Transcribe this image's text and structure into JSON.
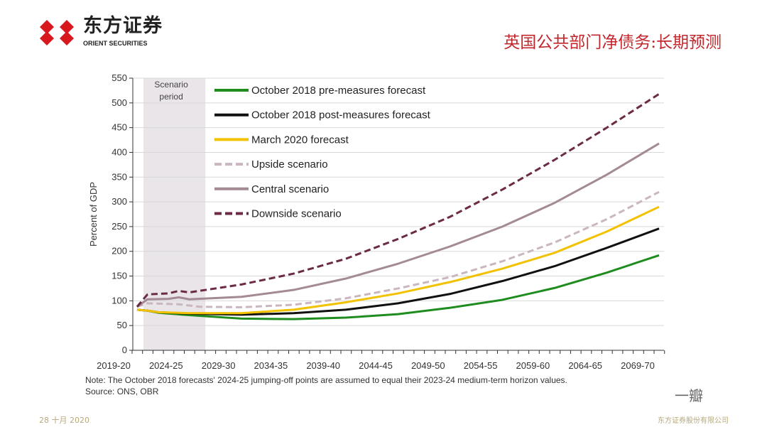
{
  "header": {
    "logo_cn": "东方证券",
    "logo_en": "ORIENT SECURITIES",
    "title": "英国公共部门净债务:长期预测"
  },
  "chart_data": {
    "type": "line",
    "ylabel": "Percent of GDP",
    "ylim": [
      0,
      550
    ],
    "yticks": [
      0,
      50,
      100,
      150,
      200,
      250,
      300,
      350,
      400,
      450,
      500,
      550
    ],
    "xticks": [
      "2019-20",
      "2024-25",
      "2029-30",
      "2034-35",
      "2039-40",
      "2044-45",
      "2049-50",
      "2054-55",
      "2059-60",
      "2064-65",
      "2069-70"
    ],
    "xlim": [
      2019,
      2069
    ],
    "grid": true,
    "legend_position": "top-left",
    "shaded_region": {
      "label": "Scenario period",
      "from": 2019,
      "to": 2025
    },
    "series": [
      {
        "name": "October 2018 pre-measures forecast",
        "color": "#1e8c1e",
        "dashed": false,
        "points": [
          [
            2019,
            82
          ],
          [
            2020,
            80
          ],
          [
            2021,
            76
          ],
          [
            2024,
            71
          ],
          [
            2029,
            64
          ],
          [
            2034,
            63
          ],
          [
            2039,
            66
          ],
          [
            2044,
            73
          ],
          [
            2049,
            86
          ],
          [
            2054,
            102
          ],
          [
            2059,
            126
          ],
          [
            2064,
            157
          ],
          [
            2069,
            192
          ]
        ]
      },
      {
        "name": "October 2018 post-measures forecast",
        "color": "#111111",
        "dashed": false,
        "points": [
          [
            2019,
            82
          ],
          [
            2020,
            80
          ],
          [
            2021,
            77
          ],
          [
            2024,
            74
          ],
          [
            2029,
            72
          ],
          [
            2034,
            75
          ],
          [
            2039,
            82
          ],
          [
            2044,
            95
          ],
          [
            2049,
            114
          ],
          [
            2054,
            140
          ],
          [
            2059,
            170
          ],
          [
            2064,
            207
          ],
          [
            2069,
            246
          ]
        ]
      },
      {
        "name": "March 2020 forecast",
        "color": "#f2c200",
        "dashed": false,
        "points": [
          [
            2019,
            82
          ],
          [
            2020,
            80
          ],
          [
            2021,
            77
          ],
          [
            2024,
            75
          ],
          [
            2029,
            75
          ],
          [
            2034,
            82
          ],
          [
            2039,
            97
          ],
          [
            2044,
            115
          ],
          [
            2049,
            138
          ],
          [
            2054,
            165
          ],
          [
            2059,
            197
          ],
          [
            2064,
            240
          ],
          [
            2069,
            290
          ]
        ]
      },
      {
        "name": "Upside scenario",
        "color": "#c9b6c1",
        "dashed": true,
        "points": [
          [
            2019,
            88
          ],
          [
            2020,
            95
          ],
          [
            2023,
            93
          ],
          [
            2025,
            88
          ],
          [
            2029,
            87
          ],
          [
            2034,
            92
          ],
          [
            2039,
            105
          ],
          [
            2044,
            125
          ],
          [
            2049,
            148
          ],
          [
            2054,
            180
          ],
          [
            2059,
            218
          ],
          [
            2064,
            265
          ],
          [
            2069,
            320
          ]
        ]
      },
      {
        "name": "Central scenario",
        "color": "#a38a95",
        "dashed": false,
        "points": [
          [
            2019,
            88
          ],
          [
            2020,
            103
          ],
          [
            2022,
            104
          ],
          [
            2023,
            107
          ],
          [
            2024,
            103
          ],
          [
            2029,
            108
          ],
          [
            2034,
            122
          ],
          [
            2039,
            145
          ],
          [
            2044,
            175
          ],
          [
            2049,
            210
          ],
          [
            2054,
            250
          ],
          [
            2059,
            298
          ],
          [
            2064,
            355
          ],
          [
            2069,
            418
          ]
        ]
      },
      {
        "name": "Downside scenario",
        "color": "#6b2a45",
        "dashed": true,
        "points": [
          [
            2019,
            88
          ],
          [
            2020,
            113
          ],
          [
            2022,
            115
          ],
          [
            2023,
            120
          ],
          [
            2024,
            117
          ],
          [
            2029,
            133
          ],
          [
            2034,
            155
          ],
          [
            2039,
            185
          ],
          [
            2044,
            225
          ],
          [
            2049,
            270
          ],
          [
            2054,
            325
          ],
          [
            2059,
            385
          ],
          [
            2064,
            450
          ],
          [
            2069,
            518
          ]
        ]
      }
    ]
  },
  "notes": {
    "note": "Note: The October 2018 forecasts' 2024-25  jumping-off points are assumed to equal their 2023-24  medium-term horizon values.",
    "source": "Source: ONS, OBR"
  },
  "footer": {
    "date": "28 十月 2020",
    "company": "东方证券股份有限公司",
    "watermark": "一瓣"
  }
}
